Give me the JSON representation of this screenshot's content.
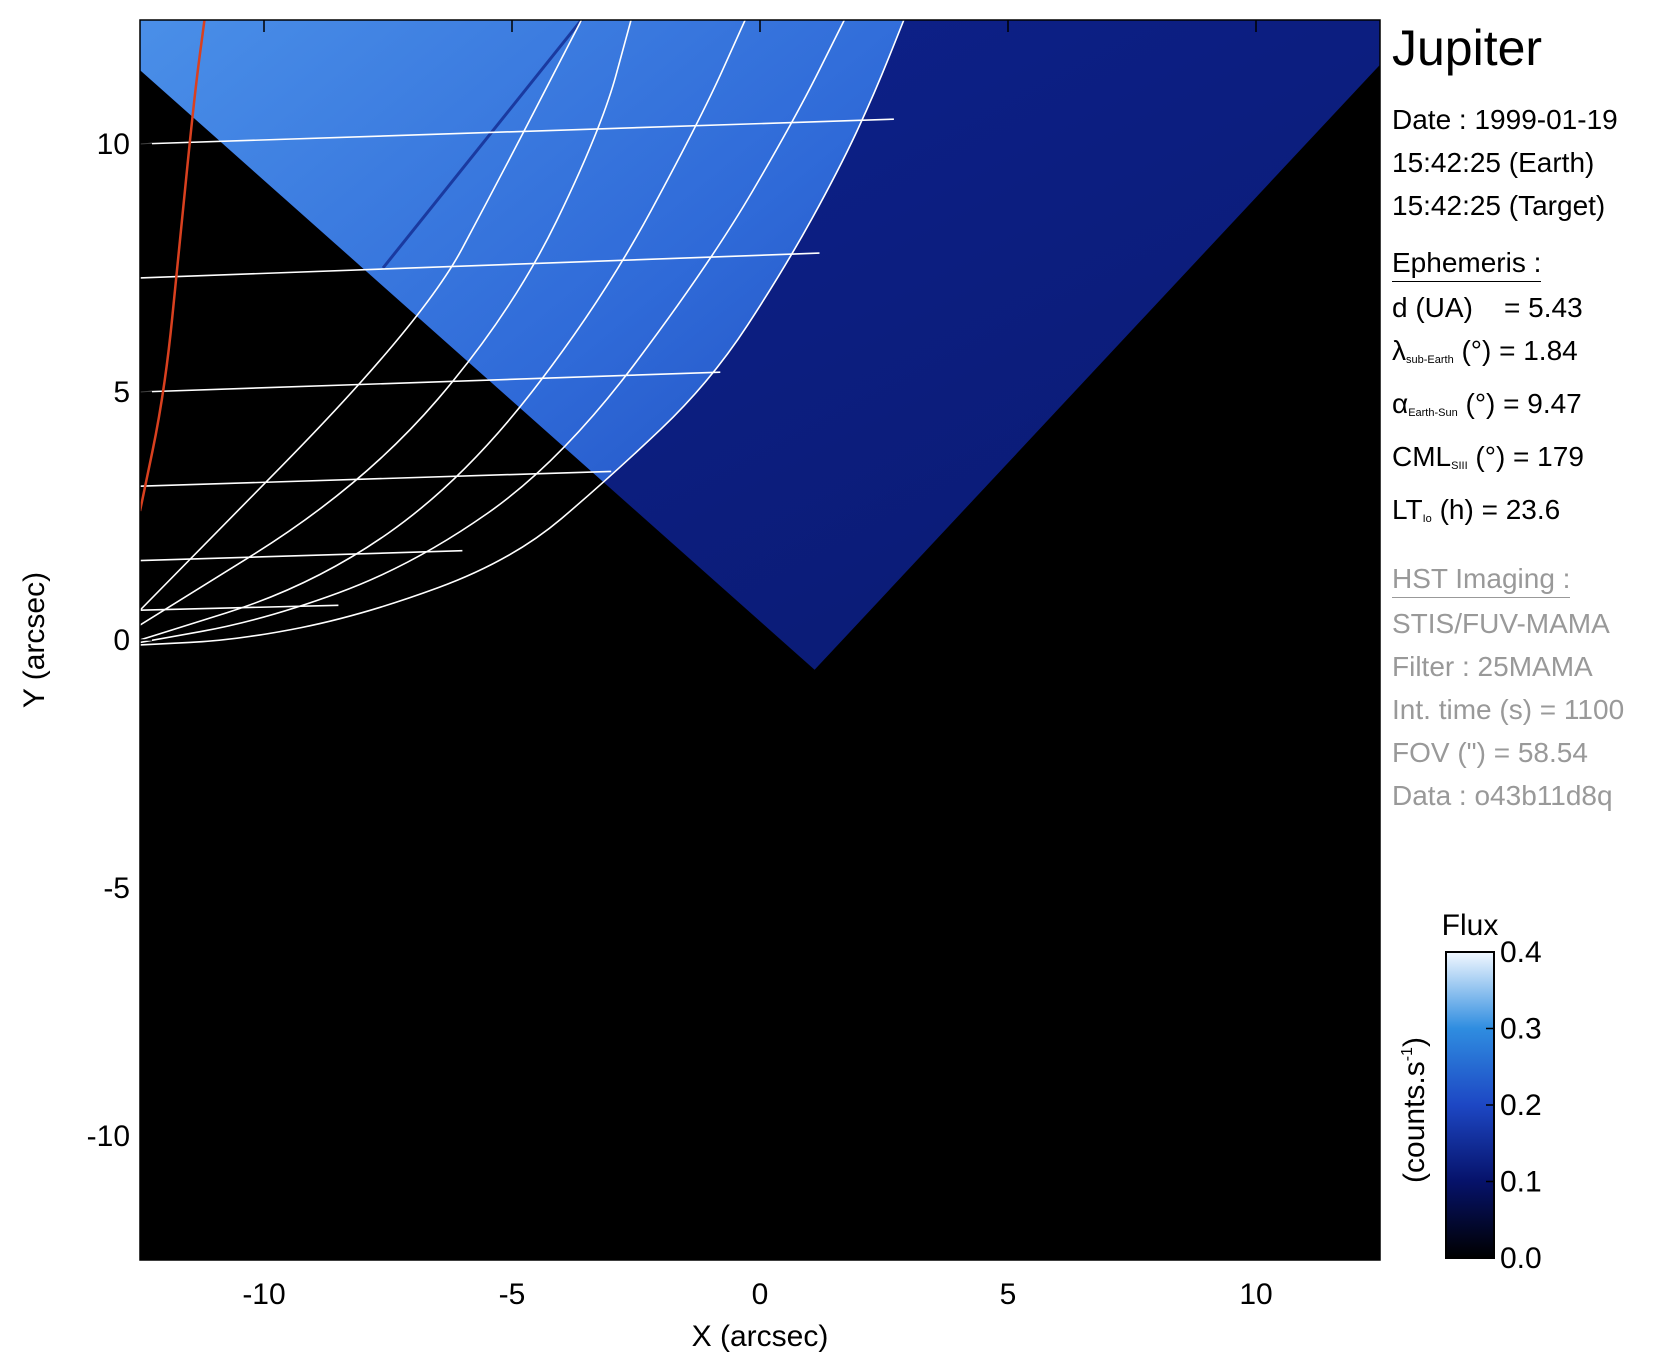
{
  "info": {
    "target": "Jupiter",
    "date_line": "Date : 1999-01-19",
    "time_earth": "15:42:25 (Earth)",
    "time_target": "15:42:25 (Target)",
    "ephemeris_header": "Ephemeris :",
    "ephemeris": [
      {
        "symbol": "d (UA)",
        "sub": "",
        "suffix": "    = 5.43"
      },
      {
        "symbol": "λ",
        "sub": "sub-Earth",
        "suffix": " (°) = 1.84"
      },
      {
        "symbol": "α",
        "sub": "Earth-Sun",
        "suffix": " (°) = 9.47"
      },
      {
        "symbol": "CML",
        "sub": "SIII",
        "suffix": " (°) = 179"
      },
      {
        "symbol": "LT",
        "sub": "Io",
        "suffix": " (h) = 23.6"
      }
    ],
    "hst_header": "HST Imaging :",
    "hst": [
      "STIS/FUV-MAMA",
      "Filter : 25MAMA",
      "Int. time (s) = 1100",
      "FOV (\") = 58.54",
      "Data : o43b11d8q"
    ]
  },
  "chart_data": {
    "type": "heatmap",
    "title": "",
    "xlabel": "X (arcsec)",
    "ylabel": "Y (arcsec)",
    "xlim": [
      -12.5,
      12.5
    ],
    "ylim": [
      -12.5,
      12.5
    ],
    "xticks": [
      -10,
      -5,
      0,
      5,
      10
    ],
    "yticks": [
      -10,
      -5,
      0,
      5,
      10
    ],
    "grid": false,
    "image": {
      "description_values": {
        "detector_fov_wedge_upper_bound": "V-shaped, vertex near (1.1, -0.6)",
        "planet_disk_limb": "arc through (2.6, 12.5), (1.4, 9), (-3.0, 3.3), (-12.5, -0.1)"
      }
    },
    "limb_arc": [
      [
        -12.5,
        -0.1
      ],
      [
        -10.5,
        0.0
      ],
      [
        -8.0,
        0.5
      ],
      [
        -5.0,
        1.6
      ],
      [
        -3.0,
        3.3
      ],
      [
        -1.0,
        5.2
      ],
      [
        0.5,
        7.5
      ],
      [
        1.6,
        9.5
      ],
      [
        2.3,
        11.0
      ],
      [
        2.9,
        12.5
      ]
    ],
    "latitude_lines": [
      [
        [
          -12.5,
          10.0
        ],
        [
          2.7,
          10.5
        ]
      ],
      [
        [
          -12.5,
          7.3
        ],
        [
          1.2,
          7.8
        ]
      ],
      [
        [
          -12.5,
          5.0
        ],
        [
          -0.8,
          5.4
        ]
      ],
      [
        [
          -12.5,
          3.1
        ],
        [
          -3.0,
          3.4
        ]
      ],
      [
        [
          -12.5,
          1.6
        ],
        [
          -6.0,
          1.8
        ]
      ],
      [
        [
          -12.5,
          0.6
        ],
        [
          -8.5,
          0.7
        ]
      ]
    ],
    "longitude_lines": [
      [
        [
          -12.5,
          -0.05
        ],
        [
          -10.0,
          0.4
        ],
        [
          -7.0,
          1.5
        ],
        [
          -4.0,
          3.6
        ],
        [
          -1.0,
          7.6
        ],
        [
          0.7,
          10.5
        ],
        [
          1.7,
          12.5
        ]
      ],
      [
        [
          -12.5,
          0.0
        ],
        [
          -9.0,
          1.1
        ],
        [
          -6.0,
          3.2
        ],
        [
          -3.2,
          6.8
        ],
        [
          -1.2,
          10.5
        ],
        [
          -0.3,
          12.5
        ]
      ],
      [
        [
          -12.5,
          0.3
        ],
        [
          -8.0,
          3.1
        ],
        [
          -5.0,
          6.6
        ],
        [
          -3.2,
          10.3
        ],
        [
          -2.6,
          12.5
        ]
      ],
      [
        [
          -12.5,
          0.6
        ],
        [
          -6.8,
          6.4
        ],
        [
          -5.2,
          9.4
        ],
        [
          -3.6,
          12.5
        ]
      ]
    ],
    "reference_line": {
      "color": "#d9401f",
      "points": [
        [
          -12.5,
          2.6
        ],
        [
          -12.0,
          5.0
        ],
        [
          -11.7,
          8.0
        ],
        [
          -11.4,
          11.0
        ],
        [
          -11.2,
          12.5
        ]
      ]
    },
    "colorbar": {
      "label": "Flux",
      "unit": "(counts.s",
      "unit_sup": "-1",
      "unit_close": ")",
      "min": 0.0,
      "max": 0.4,
      "ticks": [
        "0.0",
        "0.1",
        "0.2",
        "0.3",
        "0.4"
      ],
      "tick_values": [
        0.0,
        0.1,
        0.2,
        0.3,
        0.4
      ]
    }
  }
}
